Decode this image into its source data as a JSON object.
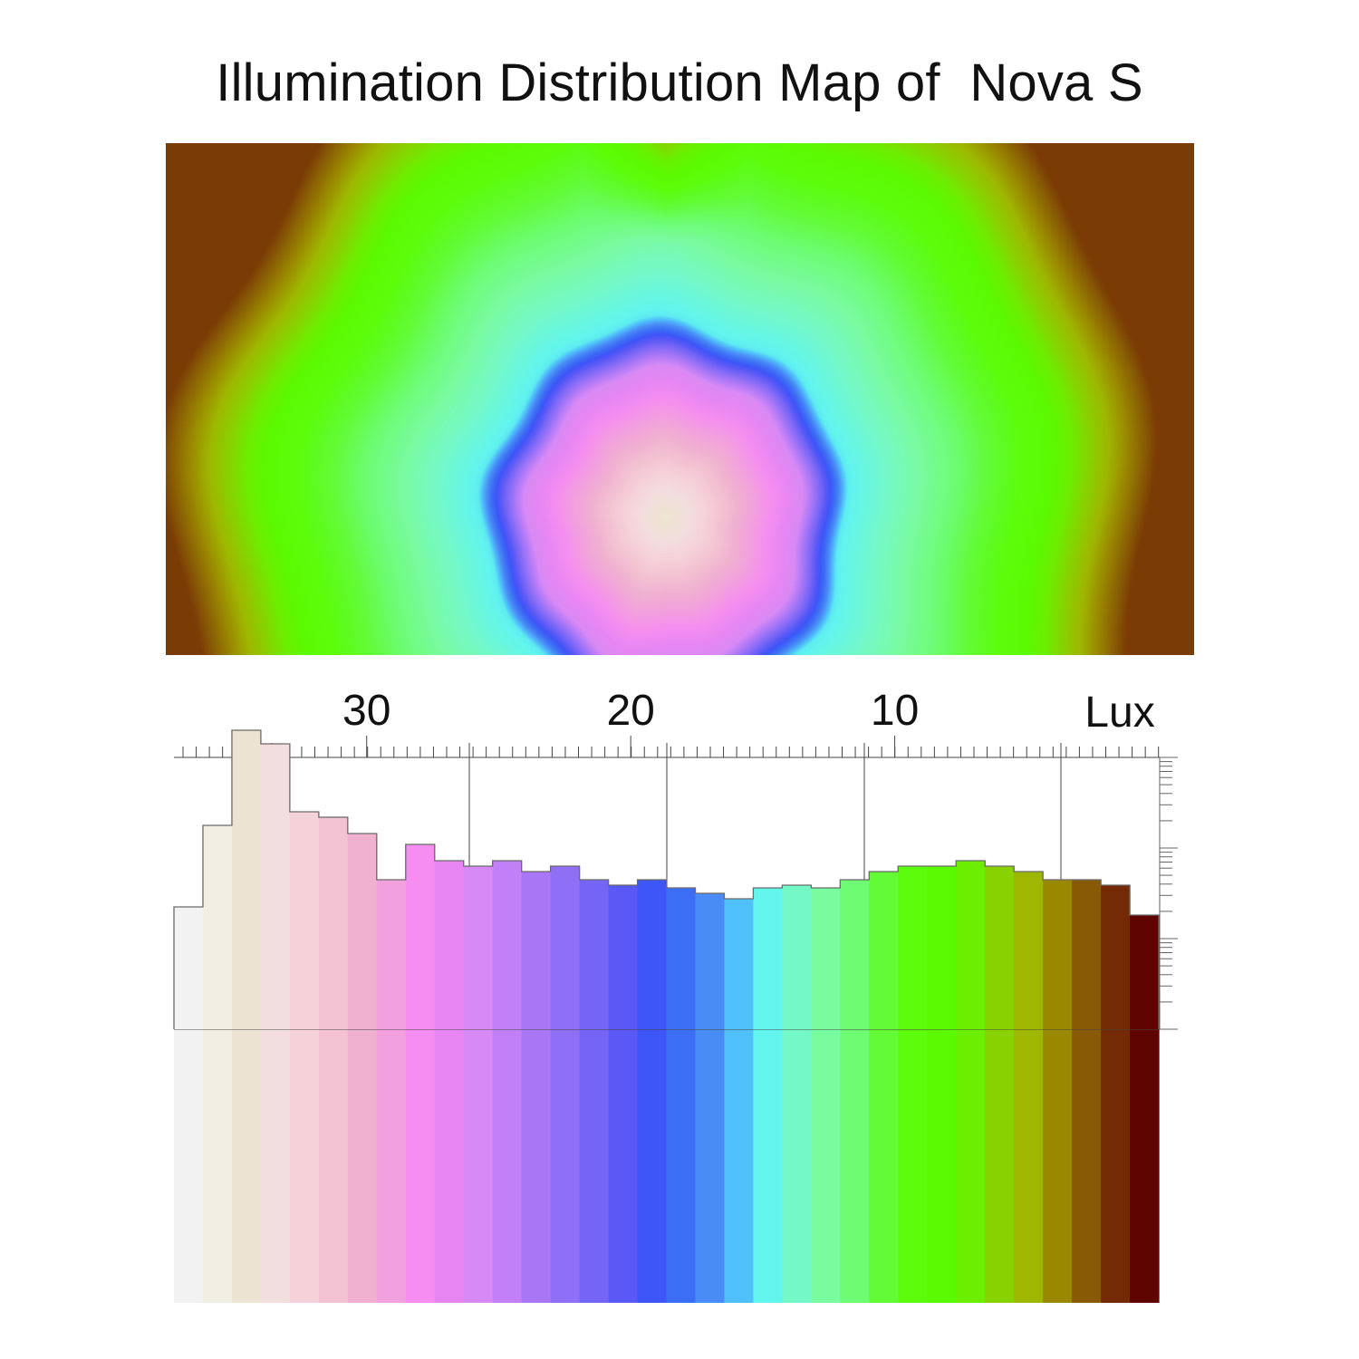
{
  "title": "Illumination Distribution Map of  Nova S",
  "chart_data": [
    {
      "type": "heatmap",
      "title": "Illumination Distribution Map of  Nova S",
      "description_values": {
        "peak_lux": 35,
        "edge_lux": 2
      },
      "colormap": "lux_scale"
    },
    {
      "type": "bar",
      "unit_label": "Lux",
      "x_tick_labels": [
        "30",
        "20",
        "10"
      ],
      "x_tick_values": [
        30,
        20,
        10
      ],
      "xlim": [
        37.3,
        0
      ],
      "bin_width_lux": 1,
      "bins": [
        {
          "lux": 36.8,
          "count": 0.45,
          "color": "#f1f2f1"
        },
        {
          "lux": 35.7,
          "count": 0.75,
          "color": "#f1efe4"
        },
        {
          "lux": 34.6,
          "count": 1.1,
          "color": "#ede3d2"
        },
        {
          "lux": 33.5,
          "count": 1.05,
          "color": "#f3dedf"
        },
        {
          "lux": 32.4,
          "count": 0.8,
          "color": "#f5d2d9"
        },
        {
          "lux": 31.3,
          "count": 0.78,
          "color": "#f3c2d2"
        },
        {
          "lux": 30.2,
          "count": 0.72,
          "color": "#f0b0d0"
        },
        {
          "lux": 29.1,
          "count": 0.55,
          "color": "#f2a0de"
        },
        {
          "lux": 28.0,
          "count": 0.68,
          "color": "#f58ef0"
        },
        {
          "lux": 26.9,
          "count": 0.62,
          "color": "#e786f3"
        },
        {
          "lux": 25.8,
          "count": 0.6,
          "color": "#d78af5"
        },
        {
          "lux": 24.7,
          "count": 0.62,
          "color": "#c180f7"
        },
        {
          "lux": 23.6,
          "count": 0.58,
          "color": "#a977f6"
        },
        {
          "lux": 22.5,
          "count": 0.6,
          "color": "#8f6ff6"
        },
        {
          "lux": 21.4,
          "count": 0.55,
          "color": "#7565f7"
        },
        {
          "lux": 20.3,
          "count": 0.53,
          "color": "#5a59f6"
        },
        {
          "lux": 19.2,
          "count": 0.55,
          "color": "#3e55f8"
        },
        {
          "lux": 18.1,
          "count": 0.52,
          "color": "#3c6ef5"
        },
        {
          "lux": 17.0,
          "count": 0.5,
          "color": "#4a8cf6"
        },
        {
          "lux": 15.9,
          "count": 0.48,
          "color": "#4fc0fb"
        },
        {
          "lux": 14.8,
          "count": 0.52,
          "color": "#62f5ee"
        },
        {
          "lux": 13.7,
          "count": 0.53,
          "color": "#74f8c8"
        },
        {
          "lux": 12.6,
          "count": 0.52,
          "color": "#79fba0"
        },
        {
          "lux": 11.5,
          "count": 0.55,
          "color": "#6dfc74"
        },
        {
          "lux": 10.4,
          "count": 0.58,
          "color": "#62fb36"
        },
        {
          "lux": 9.3,
          "count": 0.6,
          "color": "#5cfc0c"
        },
        {
          "lux": 8.2,
          "count": 0.6,
          "color": "#5cfa00"
        },
        {
          "lux": 7.1,
          "count": 0.62,
          "color": "#6cee00"
        },
        {
          "lux": 6.0,
          "count": 0.6,
          "color": "#88d200"
        },
        {
          "lux": 4.9,
          "count": 0.58,
          "color": "#9eb700"
        },
        {
          "lux": 3.8,
          "count": 0.55,
          "color": "#9a8800"
        },
        {
          "lux": 2.7,
          "count": 0.55,
          "color": "#885a05"
        },
        {
          "lux": 1.6,
          "count": 0.53,
          "color": "#742a05"
        },
        {
          "lux": 0.5,
          "count": 0.42,
          "color": "#5f0300"
        }
      ]
    }
  ]
}
